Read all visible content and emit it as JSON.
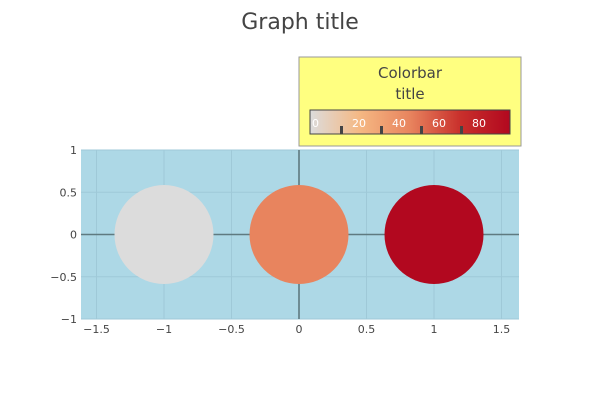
{
  "chart_data": {
    "type": "scatter",
    "title": "Graph title",
    "xlabel": "",
    "ylabel": "",
    "x": [
      -1,
      0,
      1
    ],
    "y": [
      0,
      0,
      0
    ],
    "marker_color_values": [
      0,
      50,
      100
    ],
    "xlim": [
      -1.6,
      1.6
    ],
    "ylim": [
      -1,
      1
    ],
    "x_ticks": [
      -1.5,
      -1,
      -0.5,
      0,
      0.5,
      1,
      1.5
    ],
    "x_tick_labels": [
      "−1.5",
      "−1",
      "−0.5",
      "0",
      "0.5",
      "1",
      "1.5"
    ],
    "y_ticks": [
      -1,
      -0.5,
      0,
      0.5,
      1
    ],
    "y_tick_labels": [
      "−1",
      "−0.5",
      "0",
      "0.5",
      "1"
    ],
    "grid": true,
    "plot_background": "#add8e6",
    "colorbar": {
      "title_lines": [
        "Colorbar",
        "title"
      ],
      "orientation": "horizontal",
      "placement": "top-right",
      "background": "#ffff80",
      "border_color": "#999999",
      "range": [
        0,
        100
      ],
      "ticks": [
        0,
        20,
        40,
        60,
        80
      ],
      "tick_labels": [
        "0",
        "20",
        "40",
        "60",
        "80"
      ],
      "colorscale": [
        "#dcdcdc",
        "#f5b883",
        "#e8845e",
        "#c9302c",
        "#b2081f"
      ]
    }
  }
}
